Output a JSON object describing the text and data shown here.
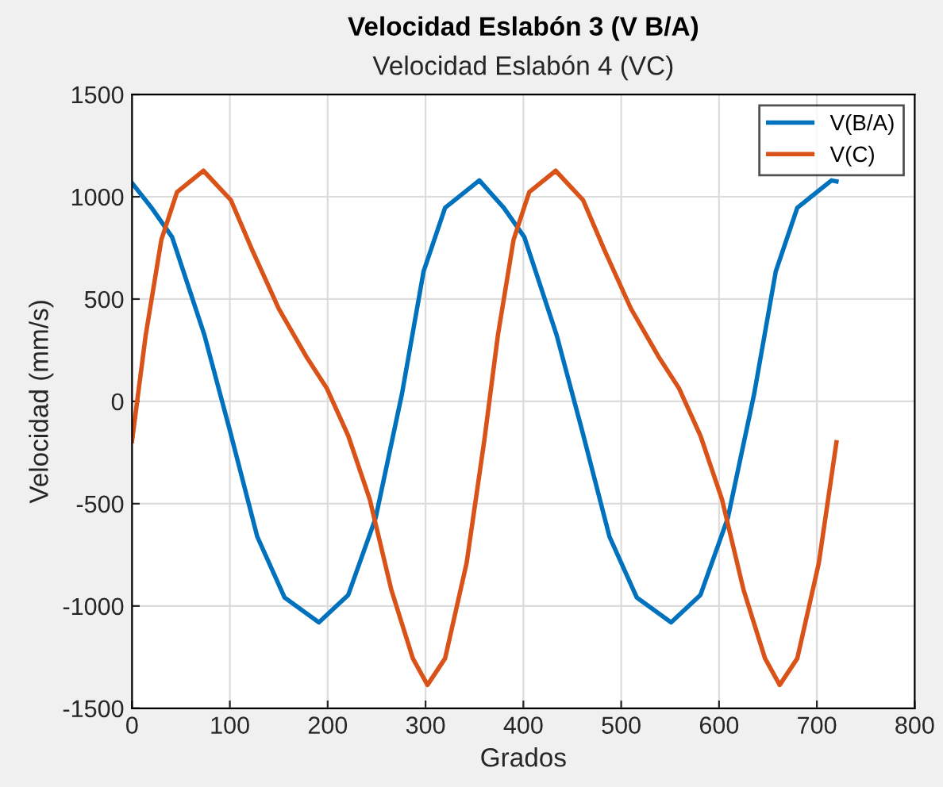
{
  "chart_data": {
    "type": "line",
    "title": "Velocidad Eslabón 3 (V B/A)",
    "subtitle": "Velocidad Eslabón 4 (VC)",
    "xlabel": "Grados",
    "ylabel": "Velocidad (mm/s)",
    "xlim": [
      0,
      800
    ],
    "xticks": [
      0,
      100,
      200,
      300,
      400,
      500,
      600,
      700,
      800
    ],
    "ylim": [
      -1500,
      1500
    ],
    "yticks": [
      -1500,
      -1000,
      -500,
      0,
      500,
      1000,
      1500
    ],
    "grid": true,
    "legend": "top right",
    "line_style": "solid",
    "marker": "none",
    "series": [
      {
        "name": "V(B/A)",
        "color": "#0072bd",
        "x": [
          0,
          20,
          41,
          74,
          100,
          128,
          156,
          191,
          221,
          249,
          276,
          298,
          320,
          355,
          380,
          401,
          434,
          460,
          488,
          516,
          551,
          581,
          609,
          636,
          658,
          680,
          715,
          720
        ],
        "values": [
          1067,
          946,
          803,
          324,
          -142,
          -661,
          -959,
          -1080,
          -946,
          -570,
          39,
          635,
          946,
          1080,
          946,
          803,
          324,
          -142,
          -661,
          -959,
          -1080,
          -946,
          -570,
          39,
          635,
          946,
          1080,
          1075
        ]
      },
      {
        "name": "V(C)",
        "color": "#d95319",
        "x": [
          0,
          14,
          30,
          46,
          73,
          101,
          123,
          150,
          178,
          199,
          221,
          243,
          265,
          287,
          302,
          320,
          342,
          360,
          374,
          390,
          406,
          433,
          461,
          483,
          510,
          538,
          559,
          581,
          603,
          625,
          647,
          662,
          680,
          702,
          720
        ],
        "values": [
          -194,
          324,
          790,
          1023,
          1127,
          984,
          738,
          453,
          220,
          65,
          -168,
          -479,
          -920,
          -1256,
          -1386,
          -1256,
          -790,
          -194,
          324,
          790,
          1023,
          1127,
          984,
          738,
          453,
          220,
          65,
          -168,
          -479,
          -920,
          -1256,
          -1386,
          -1256,
          -790,
          -200
        ]
      }
    ]
  }
}
